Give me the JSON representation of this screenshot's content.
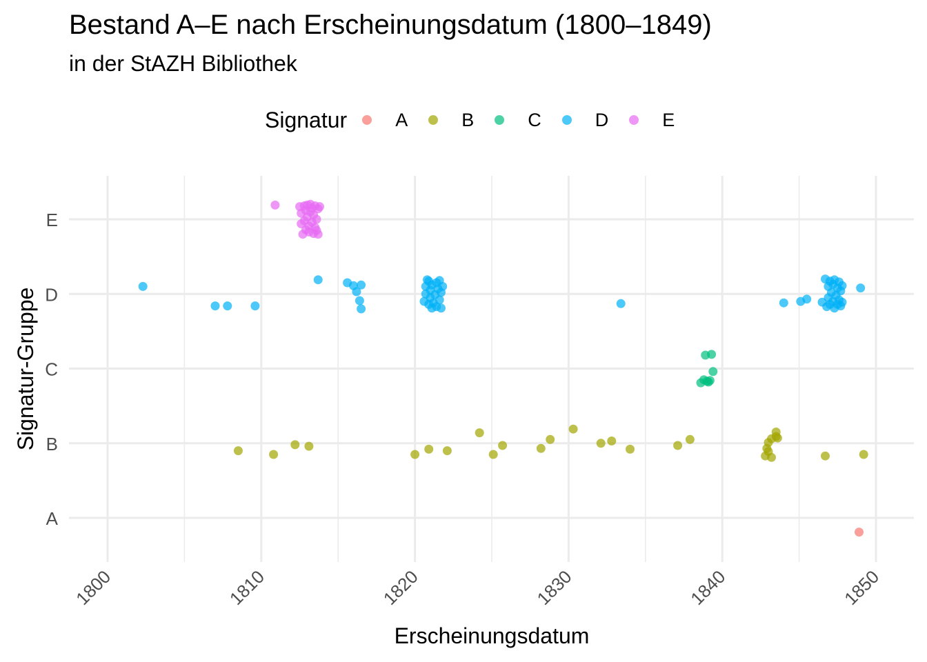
{
  "title": "Bestand A–E nach Erscheinungsdatum (1800–1849)",
  "subtitle": "in der StAZH Bibliothek",
  "legend": {
    "title": "Signatur",
    "items": [
      {
        "label": "A",
        "color": "#F8766D"
      },
      {
        "label": "B",
        "color": "#A3A500"
      },
      {
        "label": "C",
        "color": "#00BF7D"
      },
      {
        "label": "D",
        "color": "#00B0F6"
      },
      {
        "label": "E",
        "color": "#E76BF3"
      }
    ]
  },
  "chart_data": {
    "type": "scatter",
    "title": "Bestand A–E nach Erscheinungsdatum (1800–1849)",
    "subtitle": "in der StAZH Bibliothek",
    "xlabel": "Erscheinungsdatum",
    "ylabel": "Signatur-Gruppe",
    "x_ticks": [
      1800,
      1810,
      1820,
      1830,
      1840,
      1850
    ],
    "y_categories": [
      "A",
      "B",
      "C",
      "D",
      "E"
    ],
    "xlim": [
      1797.8,
      1852.5
    ],
    "ylim": [
      0.4,
      5.6
    ],
    "grid": true,
    "legend_position": "top",
    "jitter": "points are vertically jittered around their category",
    "series": [
      {
        "name": "A",
        "color": "#F8766D",
        "points": [
          [
            1848.9,
            0.81
          ]
        ]
      },
      {
        "name": "B",
        "color": "#A3A500",
        "points": [
          [
            1808.5,
            1.9
          ],
          [
            1810.8,
            1.85
          ],
          [
            1812.2,
            1.98
          ],
          [
            1813.1,
            1.96
          ],
          [
            1820.0,
            1.85
          ],
          [
            1820.9,
            1.92
          ],
          [
            1822.1,
            1.9
          ],
          [
            1824.2,
            2.14
          ],
          [
            1825.1,
            1.85
          ],
          [
            1825.7,
            1.97
          ],
          [
            1828.2,
            1.93
          ],
          [
            1828.8,
            2.05
          ],
          [
            1830.3,
            2.19
          ],
          [
            1832.1,
            2.0
          ],
          [
            1832.8,
            2.03
          ],
          [
            1834.0,
            1.92
          ],
          [
            1837.1,
            1.97
          ],
          [
            1837.9,
            2.05
          ],
          [
            1842.8,
            1.83
          ],
          [
            1842.9,
            1.93
          ],
          [
            1843.0,
            2.01
          ],
          [
            1843.0,
            1.89
          ],
          [
            1843.2,
            2.06
          ],
          [
            1843.2,
            1.81
          ],
          [
            1843.5,
            2.09
          ],
          [
            1843.5,
            2.15
          ],
          [
            1843.6,
            2.07
          ],
          [
            1846.7,
            1.83
          ],
          [
            1849.2,
            1.85
          ]
        ]
      },
      {
        "name": "C",
        "color": "#00BF7D",
        "points": [
          [
            1838.6,
            2.81
          ],
          [
            1838.8,
            2.85
          ],
          [
            1838.9,
            3.18
          ],
          [
            1839.0,
            2.83
          ],
          [
            1839.1,
            2.82
          ],
          [
            1839.2,
            2.84
          ],
          [
            1839.3,
            3.19
          ],
          [
            1839.4,
            2.96
          ]
        ]
      },
      {
        "name": "D",
        "color": "#00B0F6",
        "points": [
          [
            1802.3,
            4.1
          ],
          [
            1807.0,
            3.84
          ],
          [
            1807.8,
            3.84
          ],
          [
            1809.6,
            3.84
          ],
          [
            1813.7,
            4.19
          ],
          [
            1815.6,
            4.15
          ],
          [
            1816.0,
            4.11
          ],
          [
            1816.2,
            4.03
          ],
          [
            1816.4,
            3.91
          ],
          [
            1816.5,
            4.12
          ],
          [
            1816.5,
            3.8
          ],
          [
            1820.6,
            3.9
          ],
          [
            1820.7,
            4.0
          ],
          [
            1820.7,
            4.1
          ],
          [
            1820.8,
            4.19
          ],
          [
            1820.9,
            3.86
          ],
          [
            1820.9,
            4.17
          ],
          [
            1821.0,
            3.95
          ],
          [
            1821.0,
            4.05
          ],
          [
            1821.1,
            3.81
          ],
          [
            1821.1,
            4.12
          ],
          [
            1821.2,
            3.88
          ],
          [
            1821.3,
            3.99
          ],
          [
            1821.4,
            4.15
          ],
          [
            1821.4,
            3.83
          ],
          [
            1821.5,
            4.07
          ],
          [
            1821.6,
            3.92
          ],
          [
            1821.6,
            4.18
          ],
          [
            1821.7,
            3.81
          ],
          [
            1821.7,
            4.02
          ],
          [
            1821.8,
            4.1
          ],
          [
            1833.4,
            3.87
          ],
          [
            1844.0,
            3.88
          ],
          [
            1845.1,
            3.9
          ],
          [
            1845.5,
            3.93
          ],
          [
            1846.5,
            3.89
          ],
          [
            1846.7,
            4.2
          ],
          [
            1846.8,
            3.83
          ],
          [
            1846.9,
            4.1
          ],
          [
            1846.9,
            3.95
          ],
          [
            1847.0,
            4.17
          ],
          [
            1847.0,
            3.86
          ],
          [
            1847.1,
            4.02
          ],
          [
            1847.2,
            3.9
          ],
          [
            1847.2,
            4.13
          ],
          [
            1847.3,
            4.19
          ],
          [
            1847.3,
            3.81
          ],
          [
            1847.4,
            3.98
          ],
          [
            1847.5,
            4.08
          ],
          [
            1847.5,
            3.86
          ],
          [
            1847.6,
            4.16
          ],
          [
            1847.6,
            3.92
          ],
          [
            1847.7,
            4.04
          ],
          [
            1847.7,
            3.84
          ],
          [
            1847.8,
            4.11
          ],
          [
            1847.8,
            3.89
          ],
          [
            1849.0,
            4.08
          ]
        ]
      },
      {
        "name": "E",
        "color": "#E76BF3",
        "points": [
          [
            1810.9,
            5.19
          ],
          [
            1812.5,
            5.17
          ],
          [
            1812.6,
            4.94
          ],
          [
            1812.6,
            5.08
          ],
          [
            1812.7,
            4.8
          ],
          [
            1812.8,
            5.18
          ],
          [
            1812.8,
            4.98
          ],
          [
            1812.9,
            5.12
          ],
          [
            1812.9,
            4.86
          ],
          [
            1813.0,
            5.03
          ],
          [
            1813.0,
            5.19
          ],
          [
            1813.1,
            4.91
          ],
          [
            1813.1,
            4.83
          ],
          [
            1813.2,
            5.1
          ],
          [
            1813.2,
            5.2
          ],
          [
            1813.3,
            4.96
          ],
          [
            1813.3,
            5.15
          ],
          [
            1813.4,
            4.81
          ],
          [
            1813.4,
            5.06
          ],
          [
            1813.5,
            4.89
          ],
          [
            1813.5,
            5.18
          ],
          [
            1813.6,
            5.0
          ],
          [
            1813.6,
            4.85
          ],
          [
            1813.7,
            5.14
          ],
          [
            1813.7,
            4.8
          ],
          [
            1813.8,
            5.17
          ]
        ]
      }
    ]
  }
}
